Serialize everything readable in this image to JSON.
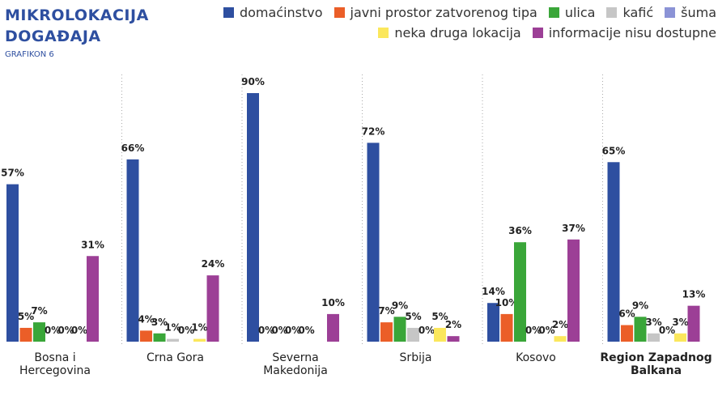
{
  "chart_data": {
    "type": "bar",
    "title": "MIKROLOKACIJA DOGAĐAJA",
    "subtitle": "GRAFIKON 6",
    "categories": [
      "Bosna i Hercegovina",
      "Crna Gora",
      "Severna Makedonija",
      "Srbija",
      "Kosovo",
      "Region Zapadnog Balkana"
    ],
    "ylim": [
      0,
      90
    ],
    "series": [
      {
        "name": "domaćinstvo",
        "color": "#2e4fa0",
        "values": [
          57,
          66,
          90,
          72,
          14,
          65
        ],
        "value_labels": [
          "57%",
          "66%",
          "90%",
          "72%",
          "14%",
          "65%"
        ]
      },
      {
        "name": "javni prostor zatvorenog tipa",
        "color": "#eb5e28",
        "values": [
          5,
          4,
          0,
          7,
          10,
          6
        ],
        "value_labels": [
          "5%",
          "4%",
          "0%",
          "7%",
          "10%",
          "6%"
        ]
      },
      {
        "name": "ulica",
        "color": "#3aa639",
        "values": [
          7,
          3,
          0,
          9,
          36,
          9
        ],
        "value_labels": [
          "7%",
          "3%",
          "0%",
          "9%",
          "36%",
          "9%"
        ]
      },
      {
        "name": "kafić",
        "color": "#c6c6c6",
        "values": [
          0,
          1,
          0,
          5,
          0,
          3
        ],
        "value_labels": [
          "0%",
          "1%",
          "0%",
          "5%",
          "0%",
          "3%"
        ]
      },
      {
        "name": "šuma",
        "color": "#8b93d6",
        "values": [
          0,
          0,
          0,
          0,
          0,
          0
        ],
        "value_labels": [
          "0%",
          "0%",
          "0%",
          "0%",
          "0%",
          "0%"
        ]
      },
      {
        "name": "neka druga lokacija",
        "color": "#fbe75c",
        "values": [
          0,
          1,
          null,
          5,
          2,
          3
        ],
        "value_labels": [
          "0%",
          "1%",
          null,
          "5%",
          "2%",
          "3%"
        ]
      },
      {
        "name": "informacije nisu dostupne",
        "color": "#9c3f96",
        "values": [
          31,
          24,
          10,
          2,
          37,
          13
        ],
        "value_labels": [
          "31%",
          "24%",
          "10%",
          "2%",
          "37%",
          "13%"
        ]
      }
    ]
  }
}
